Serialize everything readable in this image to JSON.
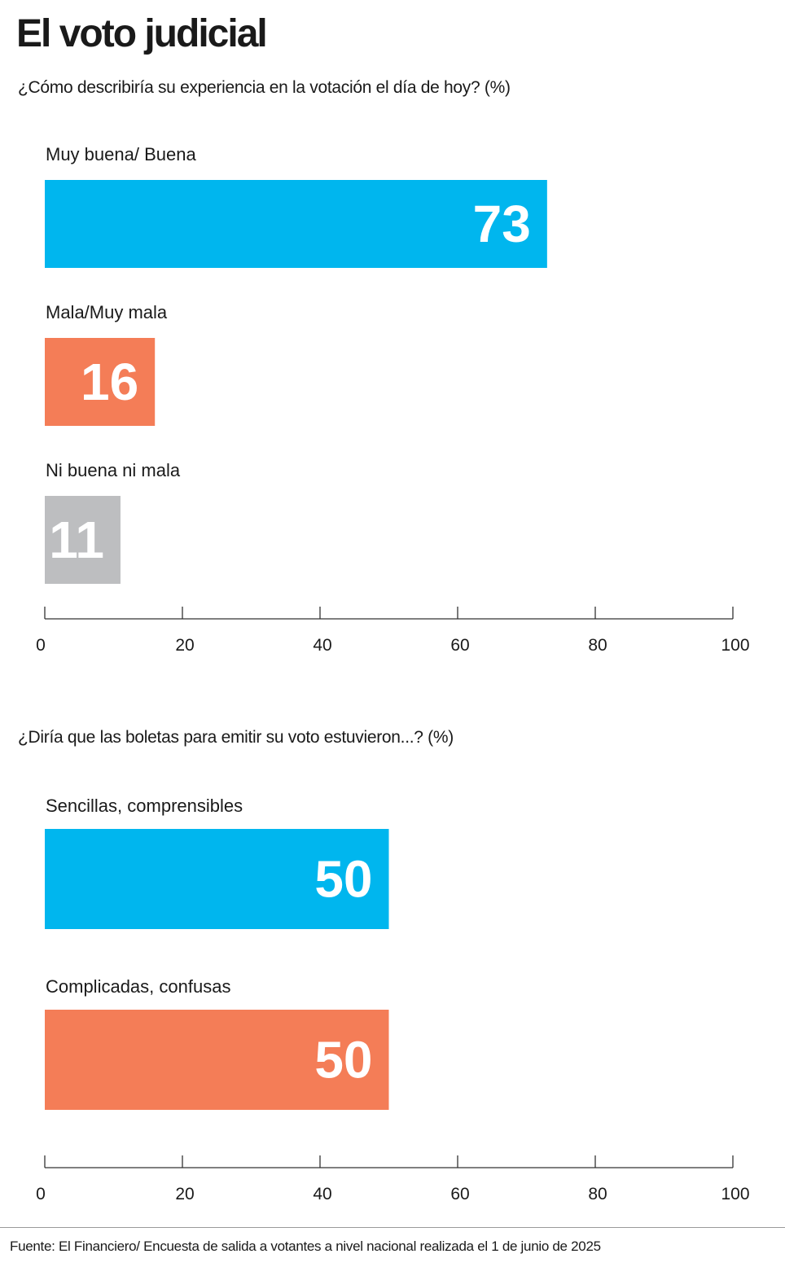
{
  "title": "El voto judicial",
  "source": "Fuente: El Financiero/ Encuesta de salida a votantes a nivel nacional realizada el 1 de junio de 2025",
  "chart_data": [
    {
      "type": "bar",
      "orientation": "horizontal",
      "title": "¿Cómo describiría su experiencia en la votación el día de hoy? (%)",
      "categories": [
        "Muy buena/ Buena",
        "Mala/Muy mala",
        "Ni buena ni mala"
      ],
      "values": [
        73,
        16,
        11
      ],
      "colors": [
        "#00B6EE",
        "#F47D57",
        "#BDBEC0"
      ],
      "xlim": [
        0,
        100
      ],
      "ticks": [
        0,
        20,
        40,
        60,
        80,
        100
      ],
      "grid": false,
      "data_labels": true
    },
    {
      "type": "bar",
      "orientation": "horizontal",
      "title": "¿Diría que las boletas para emitir su voto estuvieron...? (%)",
      "categories": [
        "Sencillas, comprensibles",
        "Complicadas, confusas"
      ],
      "values": [
        50,
        50
      ],
      "colors": [
        "#00B6EE",
        "#F47D57"
      ],
      "xlim": [
        0,
        100
      ],
      "ticks": [
        0,
        20,
        40,
        60,
        80,
        100
      ],
      "grid": false,
      "data_labels": true
    }
  ]
}
